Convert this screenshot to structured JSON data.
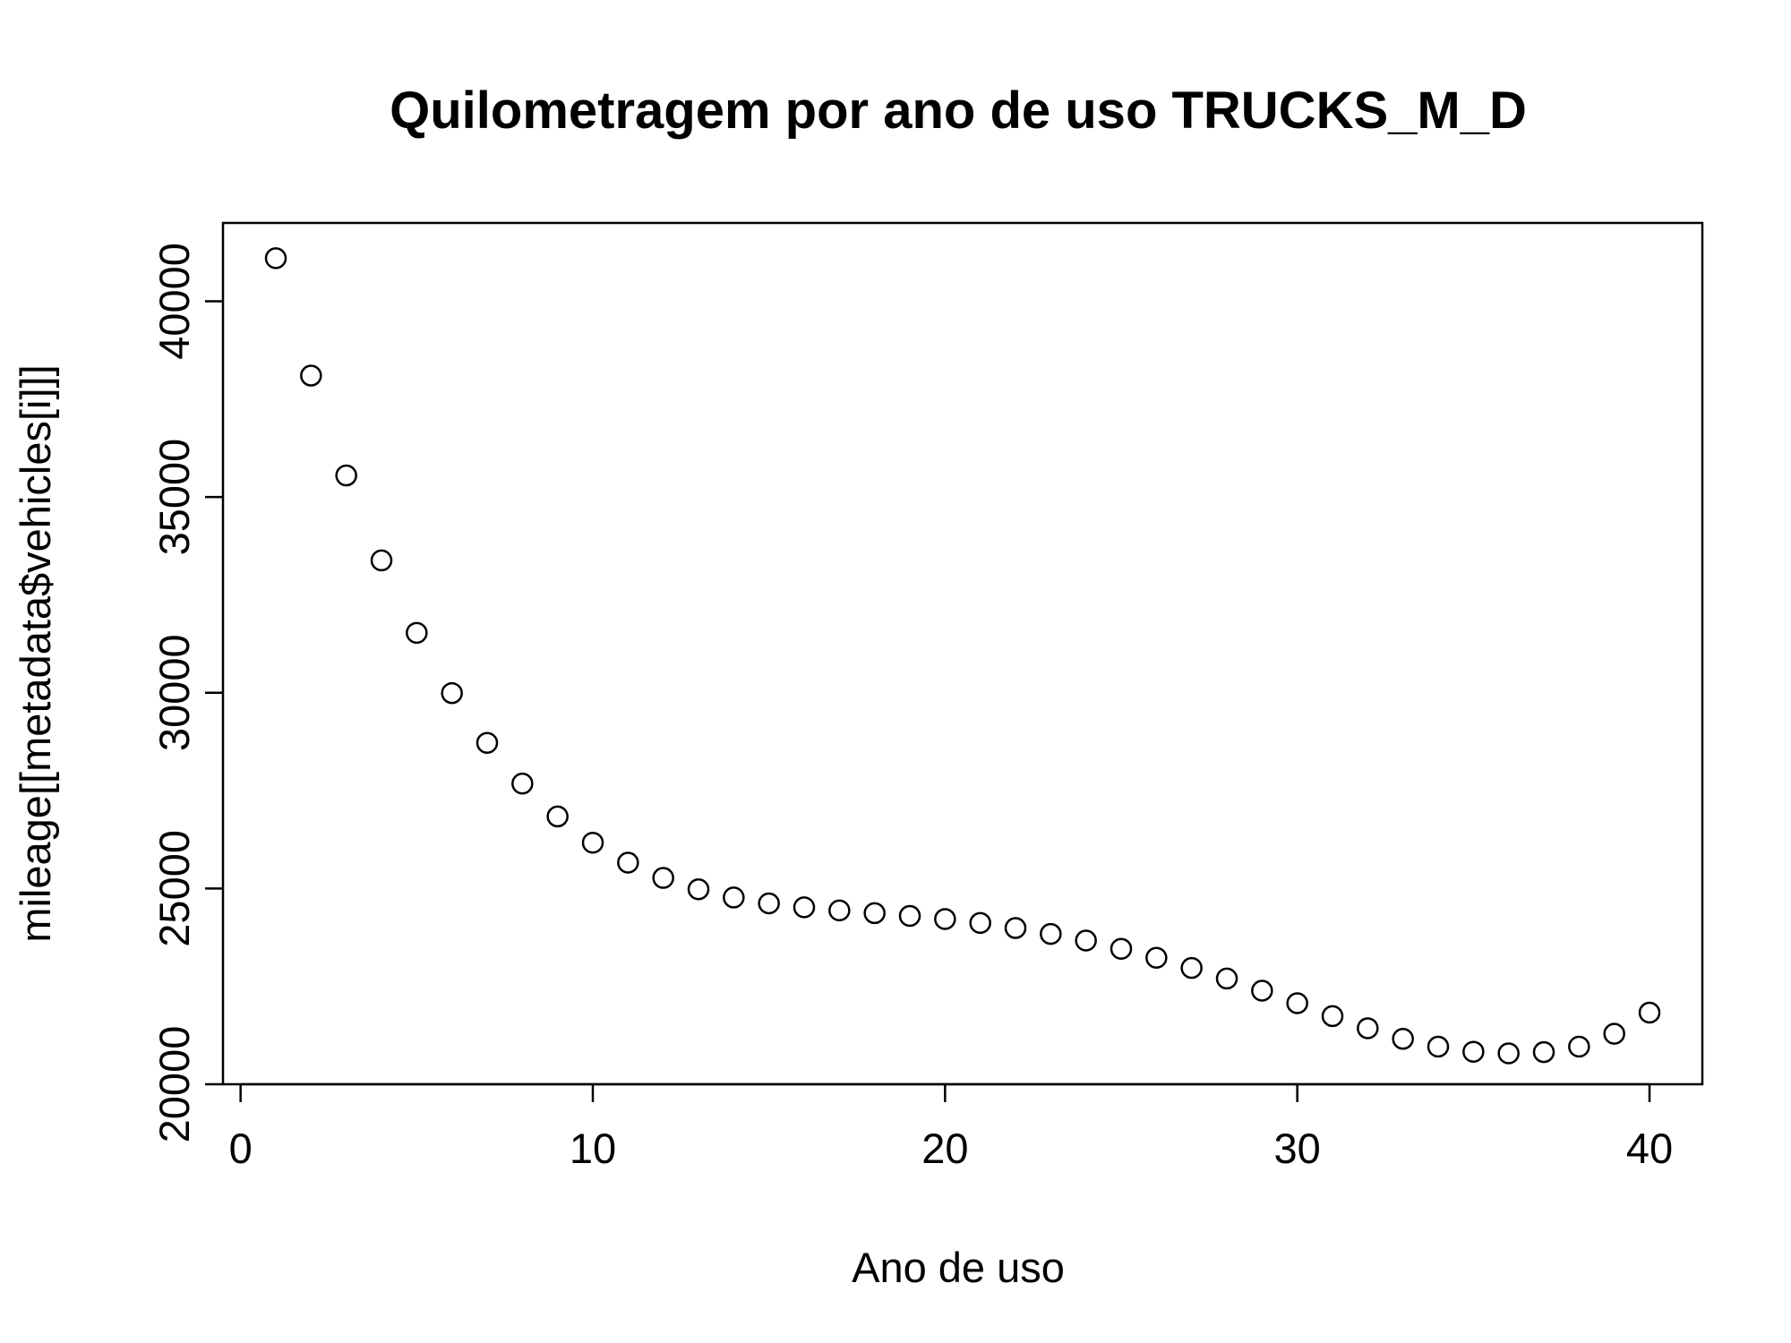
{
  "chart_data": {
    "type": "scatter",
    "title": "Quilometragem por ano de uso TRUCKS_M_D",
    "xlabel": "Ano de uso",
    "ylabel": "mileage[[metadata$vehicles[i]]]",
    "xlim": [
      -0.5,
      41.5
    ],
    "ylim": [
      20000,
      42000
    ],
    "x_ticks": [
      0,
      10,
      20,
      30,
      40
    ],
    "y_ticks": [
      20000,
      25000,
      30000,
      35000,
      40000
    ],
    "x_tick_labels": [
      "0",
      "10",
      "20",
      "30",
      "40"
    ],
    "y_tick_labels": [
      "20000",
      "25000",
      "30000",
      "35000",
      "40000"
    ],
    "marker": "open-circle",
    "grid": false,
    "series": [
      {
        "x": [
          1,
          2,
          3,
          4,
          5,
          6,
          7,
          8,
          9,
          10,
          11,
          12,
          13,
          14,
          15,
          16,
          17,
          18,
          19,
          20,
          21,
          22,
          23,
          24,
          25,
          26,
          27,
          28,
          29,
          30,
          31,
          32,
          33,
          34,
          35,
          36,
          37,
          38,
          39,
          40
        ],
        "y": [
          41100,
          38100,
          35550,
          33380,
          31530,
          29990,
          28720,
          27680,
          26840,
          26170,
          25660,
          25270,
          24980,
          24770,
          24620,
          24520,
          24440,
          24370,
          24300,
          24220,
          24120,
          23990,
          23840,
          23670,
          23460,
          23230,
          22970,
          22700,
          22390,
          22070,
          21740,
          21430,
          21160,
          20960,
          20830,
          20790,
          20820,
          20960,
          21290,
          21830
        ]
      }
    ]
  }
}
